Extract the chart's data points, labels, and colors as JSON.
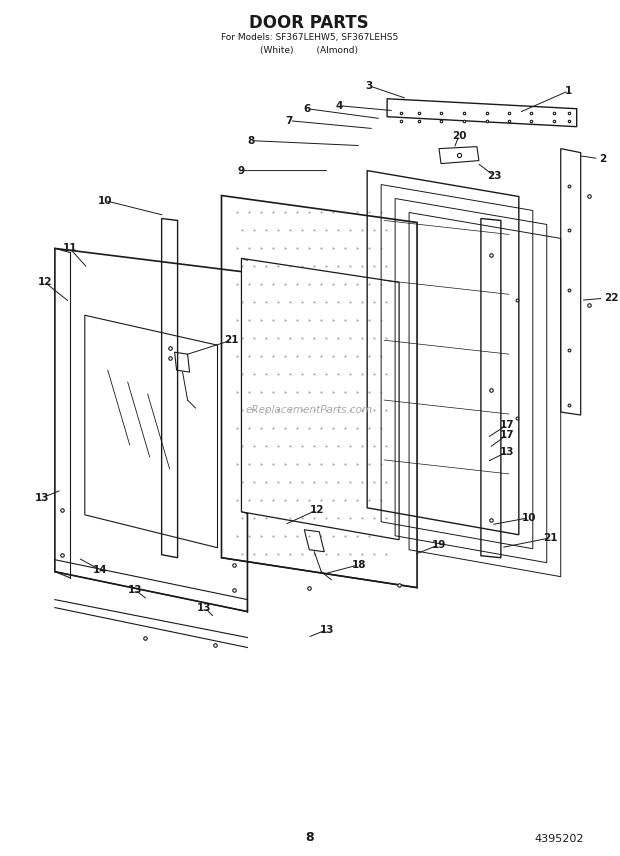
{
  "title": "DOOR PARTS",
  "subtitle1": "For Models: SF367LEHW5, SF367LEHS5",
  "subtitle2": "(White)        (Almond)",
  "page_number": "8",
  "part_number": "4395202",
  "watermark": "eReplacementParts.com",
  "background_color": "#ffffff",
  "line_color": "#1a1a1a",
  "figsize": [
    6.2,
    8.56
  ],
  "dpi": 100
}
